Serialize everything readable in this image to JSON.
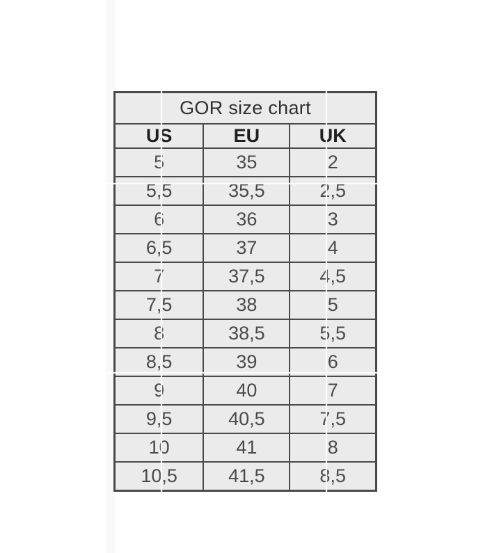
{
  "page": {
    "background_color": "#ffffff"
  },
  "chart_data": {
    "type": "table",
    "title": "GOR size chart",
    "columns": [
      "US",
      "EU",
      "UK"
    ],
    "rows": [
      [
        "5",
        "35",
        "2"
      ],
      [
        "5,5",
        "35,5",
        "2,5"
      ],
      [
        "6",
        "36",
        "3"
      ],
      [
        "6,5",
        "37",
        "4"
      ],
      [
        "7",
        "37,5",
        "4,5"
      ],
      [
        "7,5",
        "38",
        "5"
      ],
      [
        "8",
        "38,5",
        "5,5"
      ],
      [
        "8,5",
        "39",
        "6"
      ],
      [
        "9",
        "40",
        "7"
      ],
      [
        "9,5",
        "40,5",
        "7,5"
      ],
      [
        "10",
        "41",
        "8"
      ],
      [
        "10,5",
        "41,5",
        "8,5"
      ]
    ],
    "layout": {
      "legend": "none",
      "grid": "full-cell-borders",
      "title_position": "merged-top-row"
    }
  },
  "colors": {
    "cell_background": "#ebebeb",
    "table_border": "#4a4a4a",
    "title_text": "#2f2f2f",
    "header_text": "#1f1f1f",
    "cell_text": "#4a4a4a",
    "watermark_line": "#ffffff"
  }
}
